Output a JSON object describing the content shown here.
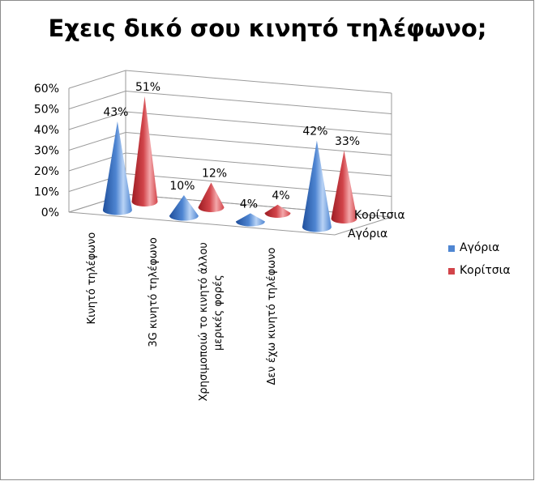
{
  "chart_data": {
    "type": "bar",
    "shape": "cone-3d",
    "title": "Εχεις δικό σου κινητό τηλέφωνο;",
    "categories": [
      [
        "Κινητό τηλέφωνο"
      ],
      [
        "3G κινητό τηλέφωνο"
      ],
      [
        "Χρησιμοποιώ το κινητό άλλου",
        "μερικές φορές"
      ],
      [
        "Δεν έχω κινητό τηλέφωνο"
      ]
    ],
    "series": [
      {
        "name": "Αγόρια",
        "values": [
          43,
          10,
          4,
          42
        ],
        "color": "#4f86d2",
        "labels": [
          "43%",
          "10%",
          "4%",
          "42%"
        ]
      },
      {
        "name": "Κορίτσια",
        "values": [
          51,
          12,
          4,
          33
        ],
        "color": "#d2444a",
        "labels": [
          "51%",
          "12%",
          "4%",
          "33%"
        ]
      }
    ],
    "ytick_labels": [
      "0%",
      "10%",
      "20%",
      "30%",
      "40%",
      "50%",
      "60%"
    ],
    "ylim": [
      0,
      60
    ],
    "depth_axis_labels": [
      "Κορίτσια",
      "Αγόρια"
    ],
    "grid": true,
    "legend": "right"
  }
}
